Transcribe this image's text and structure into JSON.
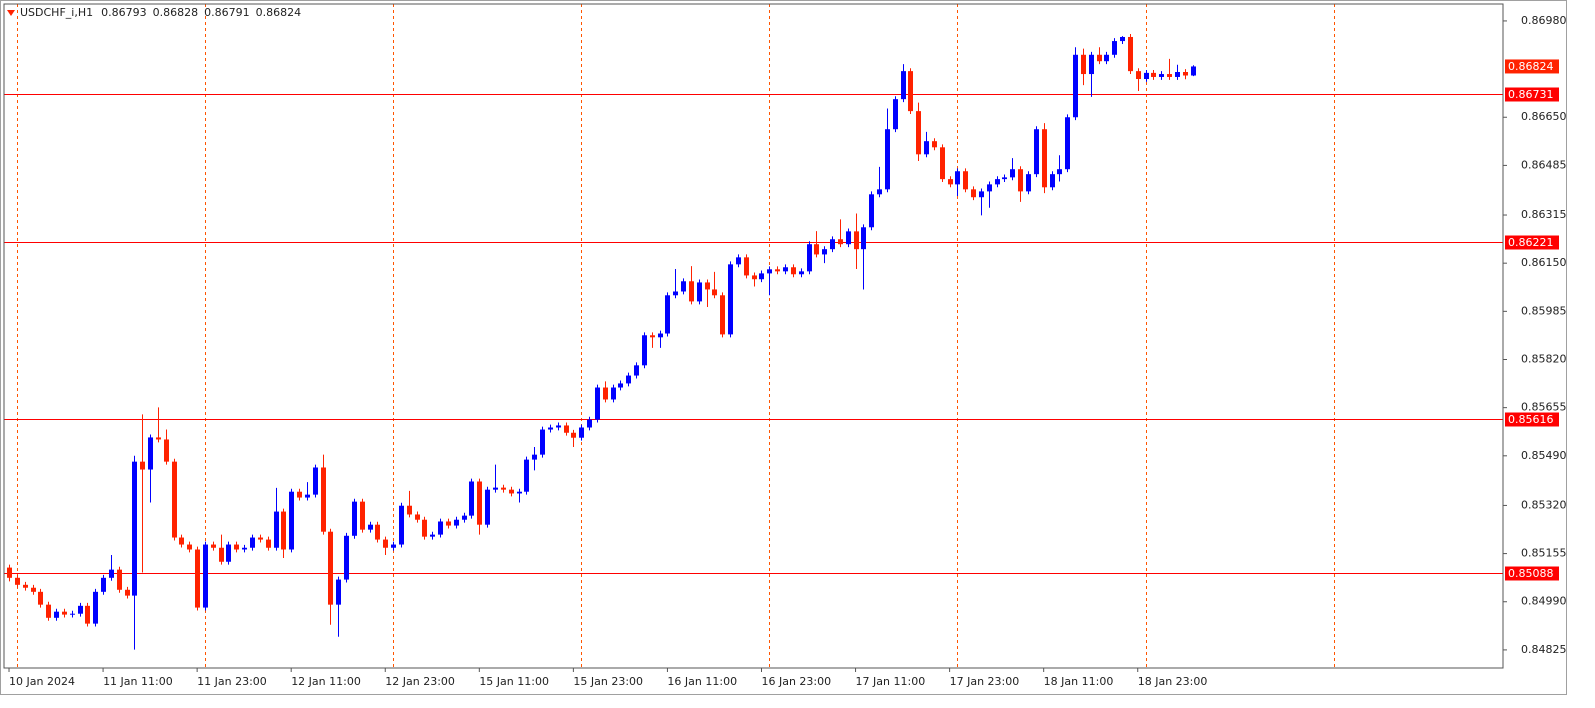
{
  "chart_data": {
    "type": "candlestick",
    "symbol": "USDCHF_i,H1",
    "up_color": "#0000ff",
    "down_color": "#ff2200",
    "level_color": "#ff0000",
    "price_color": "#ff2200",
    "separator_color": "#ff5500",
    "xlim": [
      -0.64,
      190.6
    ],
    "ylim": [
      0.84763,
      0.87038
    ],
    "yticks": [
      {
        "value": 0.8698,
        "label": "0.86980"
      },
      {
        "value": 0.8665,
        "label": "0.86650"
      },
      0.86485,
      0.86315,
      {
        "value": 0.8615,
        "label": "0.86150"
      },
      0.85985,
      {
        "value": 0.8582,
        "label": "0.85820"
      },
      0.85655,
      {
        "value": 0.8549,
        "label": "0.85490"
      },
      {
        "value": 0.8532,
        "label": "0.85320"
      },
      0.85155,
      {
        "value": 0.8499,
        "label": "0.84990"
      },
      0.84825
    ],
    "xticks": [
      {
        "value": 0,
        "label": "10 Jan 2024"
      },
      {
        "value": 12,
        "label": "11 Jan 11:00"
      },
      {
        "value": 24,
        "label": "11 Jan 23:00"
      },
      {
        "value": 36,
        "label": "12 Jan 11:00"
      },
      {
        "value": 48,
        "label": "12 Jan 23:00"
      },
      {
        "value": 60,
        "label": "15 Jan 11:00"
      },
      {
        "value": 72,
        "label": "15 Jan 23:00"
      },
      {
        "value": 84,
        "label": "16 Jan 11:00"
      },
      {
        "value": 96,
        "label": "16 Jan 23:00"
      },
      {
        "value": 108,
        "label": "17 Jan 11:00"
      },
      {
        "value": 120,
        "label": "17 Jan 23:00"
      },
      {
        "value": 132,
        "label": "18 Jan 11:00"
      },
      {
        "value": 144,
        "label": "18 Jan 23:00"
      }
    ],
    "separators": [
      1,
      25,
      49,
      73,
      97,
      121,
      145,
      169
    ],
    "levels": [
      0.86731,
      0.86221,
      0.85616,
      0.85088
    ],
    "candles": [
      [
        0.85107,
        0.85117,
        0.8506,
        0.85072
      ],
      [
        0.85072,
        0.85082,
        0.85038,
        0.85048
      ],
      [
        0.85048,
        0.85058,
        0.85028,
        0.85038
      ],
      [
        0.85038,
        0.85048,
        0.85014,
        0.85024
      ],
      [
        0.85024,
        0.85034,
        0.8497,
        0.8498
      ],
      [
        0.8498,
        0.8499,
        0.84925,
        0.84935
      ],
      [
        0.84935,
        0.84966,
        0.84925,
        0.84956
      ],
      [
        0.84956,
        0.84966,
        0.84936,
        0.84946
      ],
      [
        0.84946,
        0.84959,
        0.84936,
        0.84949
      ],
      [
        0.84949,
        0.84986,
        0.84939,
        0.84976
      ],
      [
        0.84976,
        0.84986,
        0.84905,
        0.84915
      ],
      [
        0.84915,
        0.85034,
        0.84905,
        0.85024
      ],
      [
        0.85024,
        0.85082,
        0.85014,
        0.85072
      ],
      [
        0.85072,
        0.8515,
        0.85062,
        0.851
      ],
      [
        0.851,
        0.8511,
        0.85021,
        0.85031
      ],
      [
        0.85031,
        0.85041,
        0.85001,
        0.85011
      ],
      [
        0.85011,
        0.8549,
        0.84826,
        0.8547
      ],
      [
        0.8547,
        0.85632,
        0.8509,
        0.85443
      ],
      [
        0.85443,
        0.85563,
        0.8533,
        0.85553
      ],
      [
        0.85553,
        0.85656,
        0.85536,
        0.85546
      ],
      [
        0.85546,
        0.8558,
        0.8546,
        0.8547
      ],
      [
        0.8547,
        0.8548,
        0.852,
        0.8521
      ],
      [
        0.8521,
        0.8522,
        0.85176,
        0.85186
      ],
      [
        0.85186,
        0.85196,
        0.85159,
        0.85169
      ],
      [
        0.85169,
        0.85179,
        0.8496,
        0.8497
      ],
      [
        0.8497,
        0.85196,
        0.8496,
        0.85186
      ],
      [
        0.85186,
        0.85196,
        0.85165,
        0.85175
      ],
      [
        0.85175,
        0.8522,
        0.85117,
        0.85127
      ],
      [
        0.85127,
        0.85196,
        0.85117,
        0.85186
      ],
      [
        0.85186,
        0.85196,
        0.85159,
        0.85169
      ],
      [
        0.85169,
        0.85185,
        0.85159,
        0.85175
      ],
      [
        0.85175,
        0.8522,
        0.85165,
        0.8521
      ],
      [
        0.8521,
        0.8522,
        0.85193,
        0.85203
      ],
      [
        0.85203,
        0.85213,
        0.85165,
        0.85175
      ],
      [
        0.85175,
        0.8538,
        0.85165,
        0.85299
      ],
      [
        0.85299,
        0.85309,
        0.8514,
        0.85169
      ],
      [
        0.85169,
        0.85377,
        0.85159,
        0.85367
      ],
      [
        0.85367,
        0.85377,
        0.85337,
        0.85347
      ],
      [
        0.85347,
        0.854,
        0.85337,
        0.85357
      ],
      [
        0.85357,
        0.8546,
        0.85347,
        0.8545
      ],
      [
        0.8545,
        0.85494,
        0.8522,
        0.8523
      ],
      [
        0.8523,
        0.8524,
        0.84911,
        0.8498
      ],
      [
        0.8498,
        0.85076,
        0.8487,
        0.85066
      ],
      [
        0.85066,
        0.85226,
        0.85056,
        0.85216
      ],
      [
        0.85216,
        0.85343,
        0.85206,
        0.85333
      ],
      [
        0.85333,
        0.85343,
        0.85227,
        0.85237
      ],
      [
        0.85237,
        0.85264,
        0.85227,
        0.85254
      ],
      [
        0.85254,
        0.85264,
        0.85193,
        0.85203
      ],
      [
        0.85203,
        0.85213,
        0.8515,
        0.85175
      ],
      [
        0.85175,
        0.85196,
        0.85165,
        0.85186
      ],
      [
        0.85186,
        0.85329,
        0.85176,
        0.85319
      ],
      [
        0.85319,
        0.8537,
        0.85279,
        0.85289
      ],
      [
        0.85289,
        0.85299,
        0.85261,
        0.85271
      ],
      [
        0.85271,
        0.85281,
        0.85203,
        0.85213
      ],
      [
        0.85213,
        0.8523,
        0.85203,
        0.8522
      ],
      [
        0.8522,
        0.85275,
        0.8521,
        0.85265
      ],
      [
        0.85265,
        0.85275,
        0.85241,
        0.85251
      ],
      [
        0.85251,
        0.85281,
        0.85241,
        0.85271
      ],
      [
        0.85271,
        0.85295,
        0.85261,
        0.85285
      ],
      [
        0.85285,
        0.85412,
        0.85275,
        0.85402
      ],
      [
        0.85402,
        0.85412,
        0.8522,
        0.85254
      ],
      [
        0.85254,
        0.85384,
        0.85244,
        0.85374
      ],
      [
        0.85374,
        0.8546,
        0.85364,
        0.85381
      ],
      [
        0.85381,
        0.85391,
        0.85364,
        0.85374
      ],
      [
        0.85374,
        0.85384,
        0.85351,
        0.85361
      ],
      [
        0.85361,
        0.85377,
        0.8533,
        0.85367
      ],
      [
        0.85367,
        0.85487,
        0.85357,
        0.85477
      ],
      [
        0.85477,
        0.8552,
        0.8544,
        0.85494
      ],
      [
        0.85494,
        0.8559,
        0.85484,
        0.8558
      ],
      [
        0.8558,
        0.85597,
        0.8557,
        0.85587
      ],
      [
        0.85587,
        0.85604,
        0.85577,
        0.85594
      ],
      [
        0.85594,
        0.85604,
        0.85559,
        0.85569
      ],
      [
        0.85569,
        0.85579,
        0.8552,
        0.85552
      ],
      [
        0.85552,
        0.85597,
        0.85542,
        0.85587
      ],
      [
        0.85587,
        0.85624,
        0.85577,
        0.85614
      ],
      [
        0.85614,
        0.85734,
        0.85604,
        0.85724
      ],
      [
        0.85724,
        0.85745,
        0.85673,
        0.85683
      ],
      [
        0.85683,
        0.85734,
        0.85673,
        0.85724
      ],
      [
        0.85724,
        0.85748,
        0.85714,
        0.85738
      ],
      [
        0.85738,
        0.85775,
        0.85728,
        0.85765
      ],
      [
        0.85765,
        0.8581,
        0.85755,
        0.858
      ],
      [
        0.858,
        0.85913,
        0.8579,
        0.85903
      ],
      [
        0.85903,
        0.85913,
        0.8586,
        0.85896
      ],
      [
        0.85896,
        0.85919,
        0.8586,
        0.85909
      ],
      [
        0.85909,
        0.8605,
        0.85899,
        0.8604
      ],
      [
        0.8604,
        0.8613,
        0.8603,
        0.86053
      ],
      [
        0.86053,
        0.86098,
        0.86043,
        0.86088
      ],
      [
        0.86088,
        0.8614,
        0.86009,
        0.86019
      ],
      [
        0.86019,
        0.86094,
        0.86009,
        0.86084
      ],
      [
        0.86084,
        0.86094,
        0.86,
        0.8606
      ],
      [
        0.8606,
        0.8612,
        0.8603,
        0.8604
      ],
      [
        0.8604,
        0.8605,
        0.85896,
        0.85906
      ],
      [
        0.85906,
        0.86156,
        0.85896,
        0.86146
      ],
      [
        0.86146,
        0.8618,
        0.86136,
        0.8617
      ],
      [
        0.8617,
        0.8618,
        0.86098,
        0.86108
      ],
      [
        0.86108,
        0.86118,
        0.8607,
        0.86095
      ],
      [
        0.86095,
        0.86125,
        0.86085,
        0.86115
      ],
      [
        0.86115,
        0.86139,
        0.8604,
        0.86129
      ],
      [
        0.86129,
        0.86139,
        0.86112,
        0.86122
      ],
      [
        0.86122,
        0.86146,
        0.86112,
        0.86136
      ],
      [
        0.86136,
        0.86146,
        0.86102,
        0.86112
      ],
      [
        0.86112,
        0.86132,
        0.86102,
        0.86122
      ],
      [
        0.86122,
        0.86225,
        0.86112,
        0.86215
      ],
      [
        0.86215,
        0.8626,
        0.8617,
        0.8618
      ],
      [
        0.8618,
        0.86208,
        0.8615,
        0.86198
      ],
      [
        0.86198,
        0.86242,
        0.86188,
        0.86232
      ],
      [
        0.86232,
        0.863,
        0.86205,
        0.86215
      ],
      [
        0.86215,
        0.86269,
        0.86205,
        0.86259
      ],
      [
        0.86259,
        0.8632,
        0.8613,
        0.86198
      ],
      [
        0.86198,
        0.86283,
        0.8606,
        0.86273
      ],
      [
        0.86273,
        0.86396,
        0.86263,
        0.86386
      ],
      [
        0.86386,
        0.8648,
        0.86376,
        0.86403
      ],
      [
        0.86403,
        0.8668,
        0.86393,
        0.86609
      ],
      [
        0.86609,
        0.86722,
        0.86599,
        0.86712
      ],
      [
        0.86712,
        0.86832,
        0.86702,
        0.86808
      ],
      [
        0.86808,
        0.86818,
        0.86661,
        0.86671
      ],
      [
        0.86671,
        0.867,
        0.865,
        0.86523
      ],
      [
        0.86523,
        0.866,
        0.86513,
        0.86568
      ],
      [
        0.86568,
        0.86578,
        0.86537,
        0.86547
      ],
      [
        0.86547,
        0.86557,
        0.86428,
        0.86438
      ],
      [
        0.86438,
        0.86448,
        0.8641,
        0.8642
      ],
      [
        0.8642,
        0.86475,
        0.8638,
        0.86465
      ],
      [
        0.86465,
        0.86475,
        0.86393,
        0.86403
      ],
      [
        0.86403,
        0.86413,
        0.86366,
        0.86376
      ],
      [
        0.86376,
        0.86406,
        0.86314,
        0.86396
      ],
      [
        0.86396,
        0.8643,
        0.8634,
        0.8642
      ],
      [
        0.8642,
        0.86448,
        0.8641,
        0.86438
      ],
      [
        0.86438,
        0.86454,
        0.86428,
        0.86444
      ],
      [
        0.86444,
        0.8651,
        0.86434,
        0.86472
      ],
      [
        0.86472,
        0.86482,
        0.8636,
        0.86396
      ],
      [
        0.86396,
        0.86465,
        0.86386,
        0.86455
      ],
      [
        0.86455,
        0.86619,
        0.86445,
        0.86609
      ],
      [
        0.86609,
        0.8663,
        0.8639,
        0.8641
      ],
      [
        0.8641,
        0.86465,
        0.864,
        0.86455
      ],
      [
        0.86455,
        0.8652,
        0.8643,
        0.86472
      ],
      [
        0.86472,
        0.8666,
        0.86462,
        0.8665
      ],
      [
        0.8665,
        0.8689,
        0.8664,
        0.86864
      ],
      [
        0.86864,
        0.86885,
        0.8676,
        0.86798
      ],
      [
        0.86798,
        0.86874,
        0.8672,
        0.86864
      ],
      [
        0.86864,
        0.8689,
        0.86832,
        0.86842
      ],
      [
        0.86842,
        0.86874,
        0.86832,
        0.86864
      ],
      [
        0.86864,
        0.86921,
        0.86854,
        0.86911
      ],
      [
        0.86911,
        0.86928,
        0.86901,
        0.86925
      ],
      [
        0.86925,
        0.86935,
        0.86798,
        0.86808
      ],
      [
        0.86808,
        0.86818,
        0.8674,
        0.86781
      ],
      [
        0.86781,
        0.86812,
        0.86771,
        0.86802
      ],
      [
        0.86802,
        0.86812,
        0.86778,
        0.86788
      ],
      [
        0.86788,
        0.86808,
        0.86778,
        0.86798
      ],
      [
        0.86798,
        0.8685,
        0.86778,
        0.86788
      ],
      [
        0.86788,
        0.8683,
        0.86778,
        0.86805
      ],
      [
        0.86805,
        0.86815,
        0.8678,
        0.86793
      ],
      [
        0.86793,
        0.86828,
        0.86791,
        0.86824
      ]
    ]
  }
}
